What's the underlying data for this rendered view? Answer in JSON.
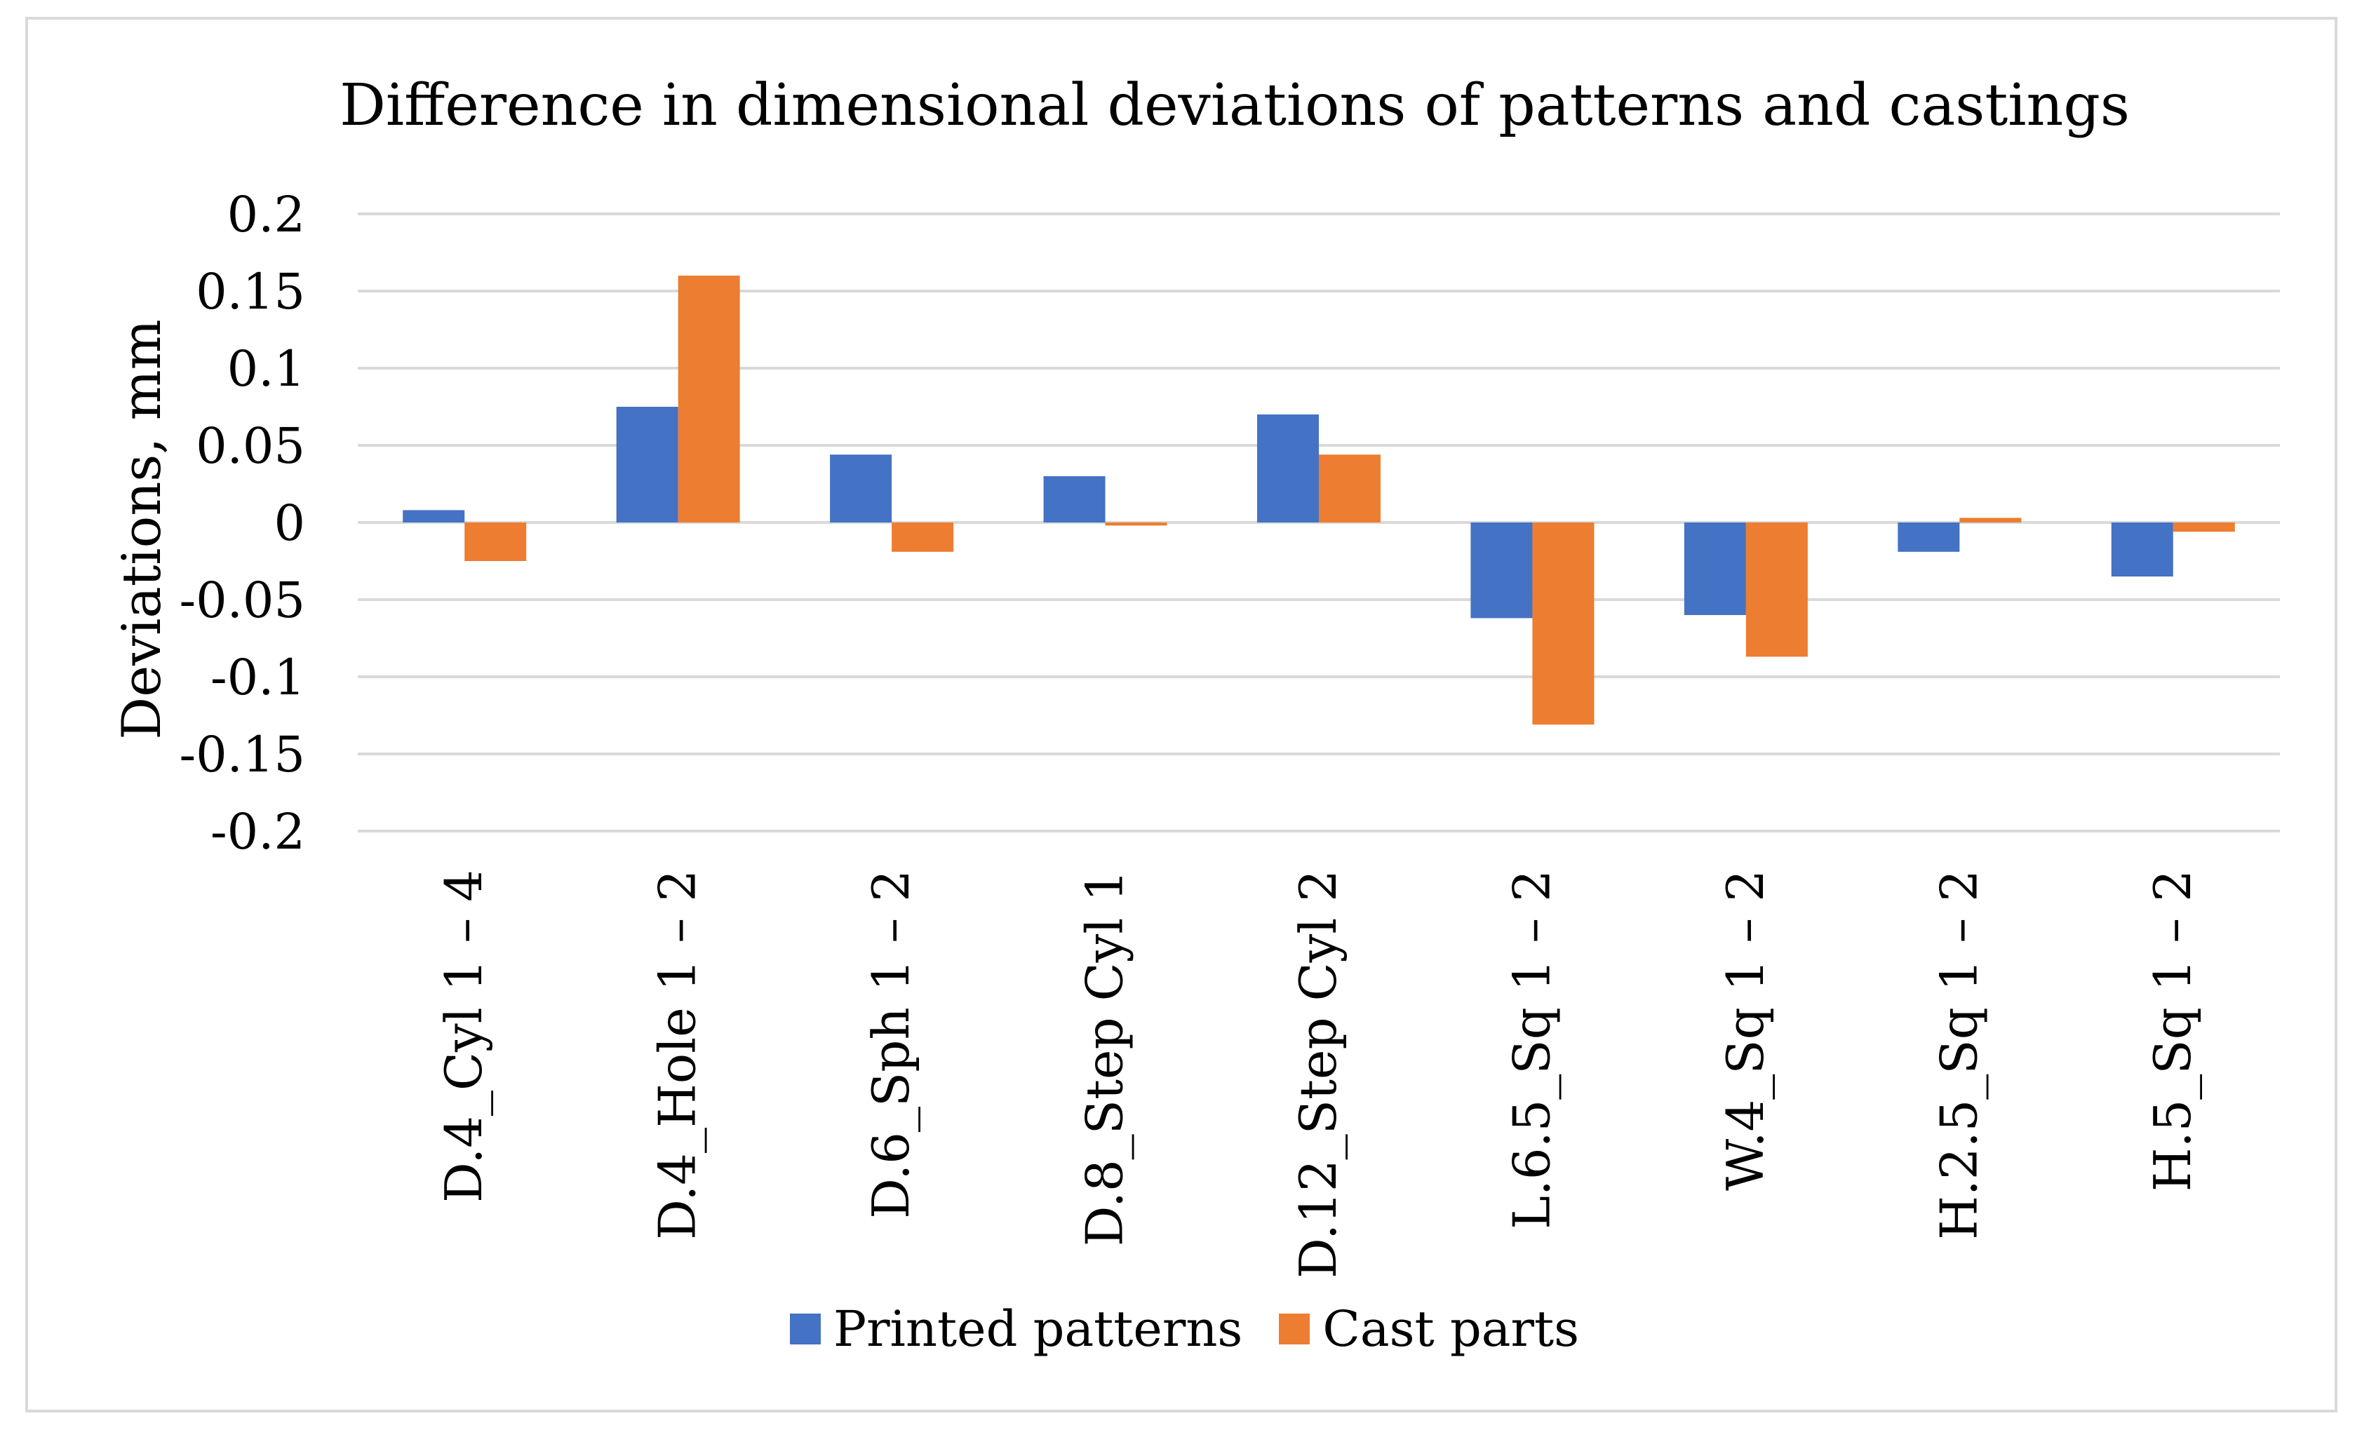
{
  "chart_data": {
    "type": "bar",
    "title": "Difference in dimensional deviations of patterns and castings",
    "xlabel": "",
    "ylabel": "Deviations, mm",
    "ylim": [
      -0.2,
      0.2
    ],
    "yticks": [
      0.2,
      0.15,
      0.1,
      0.05,
      0,
      -0.05,
      -0.1,
      -0.15,
      -0.2
    ],
    "ytick_labels": [
      "0.2",
      "0.15",
      "0.1",
      "0.05",
      "0",
      "-0.05",
      "-0.1",
      "-0.15",
      "-0.2"
    ],
    "grid": true,
    "legend_position": "bottom",
    "categories": [
      "D.4_Cyl 1 – 4",
      "D.4_Hole 1 – 2",
      "D.6_Sph 1 – 2",
      "D.8_Step Cyl 1",
      "D.12_Step Cyl 2",
      "L.6.5_Sq 1 – 2",
      "W.4_Sq 1 – 2",
      "H.2.5_Sq 1 – 2",
      "H.5_Sq 1 – 2"
    ],
    "series": [
      {
        "name": "Printed patterns",
        "color": "#4472c4",
        "values": [
          0.008,
          0.075,
          0.044,
          0.03,
          0.07,
          -0.062,
          -0.06,
          -0.019,
          -0.035
        ]
      },
      {
        "name": "Cast parts",
        "color": "#ed7d31",
        "values": [
          -0.025,
          0.16,
          -0.019,
          -0.002,
          0.044,
          -0.131,
          -0.087,
          0.003,
          -0.006
        ]
      }
    ]
  }
}
